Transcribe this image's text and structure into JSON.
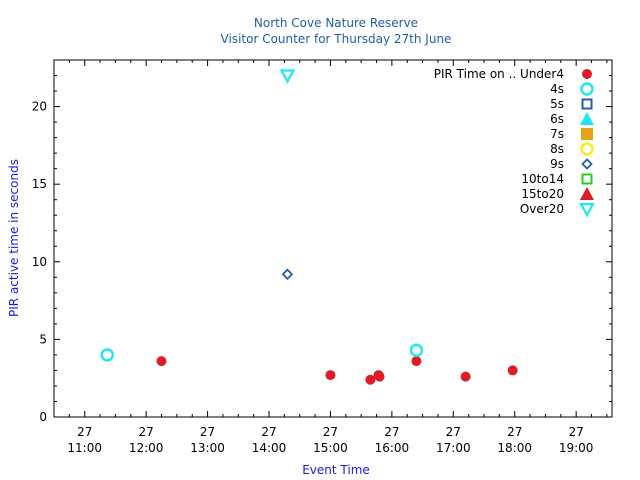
{
  "chart_data": {
    "type": "scatter",
    "title": "North Cove Nature Reserve",
    "subtitle": "Visitor Counter for Thursday 27th June",
    "xlabel": "Event Time",
    "ylabel": "PIR active time in seconds",
    "x_ticks": [
      {
        "day": "27",
        "time": "11:00"
      },
      {
        "day": "27",
        "time": "12:00"
      },
      {
        "day": "27",
        "time": "13:00"
      },
      {
        "day": "27",
        "time": "14:00"
      },
      {
        "day": "27",
        "time": "15:00"
      },
      {
        "day": "27",
        "time": "16:00"
      },
      {
        "day": "27",
        "time": "17:00"
      },
      {
        "day": "27",
        "time": "18:00"
      },
      {
        "day": "27",
        "time": "19:00"
      }
    ],
    "xlim": [
      "10:30",
      "19:35"
    ],
    "ylim": [
      0,
      23
    ],
    "y_ticks": [
      0,
      5,
      10,
      15,
      20
    ],
    "grid": false,
    "legend_title": "PIR Time on ..",
    "legend_position": "top-right",
    "series": [
      {
        "name": "Under4",
        "marker": "filled-circle",
        "color": "#dd1c26",
        "points": [
          [
            "12:15",
            3.6
          ],
          [
            "15:00",
            2.7
          ],
          [
            "15:39",
            2.4
          ],
          [
            "15:47",
            2.7
          ],
          [
            "15:48",
            2.6
          ],
          [
            "16:24",
            3.6
          ],
          [
            "17:12",
            2.6
          ],
          [
            "17:58",
            3.0
          ]
        ]
      },
      {
        "name": "4s",
        "marker": "open-circle",
        "color": "#1ee8ee",
        "points": [
          [
            "11:22",
            4.0
          ],
          [
            "16:24",
            4.3
          ]
        ]
      },
      {
        "name": "5s",
        "marker": "open-square",
        "color": "#1f5fa8",
        "points": []
      },
      {
        "name": "6s",
        "marker": "filled-triangle-up",
        "color": "#1ee8ee",
        "points": []
      },
      {
        "name": "7s",
        "marker": "filled-square",
        "color": "#e8a217",
        "points": []
      },
      {
        "name": "8s",
        "marker": "open-circle",
        "color": "#f7ee16",
        "points": []
      },
      {
        "name": "9s",
        "marker": "open-diamond",
        "color": "#1f5fa8",
        "points": [
          [
            "14:18",
            9.2
          ]
        ]
      },
      {
        "name": "10to14",
        "marker": "open-square",
        "color": "#22d51a",
        "points": []
      },
      {
        "name": "15to20",
        "marker": "filled-triangle-up",
        "color": "#dd1c26",
        "points": []
      },
      {
        "name": "Over20",
        "marker": "open-triangle-down",
        "color": "#1ee8ee",
        "points": [
          [
            "14:18",
            22.0
          ]
        ]
      }
    ]
  }
}
